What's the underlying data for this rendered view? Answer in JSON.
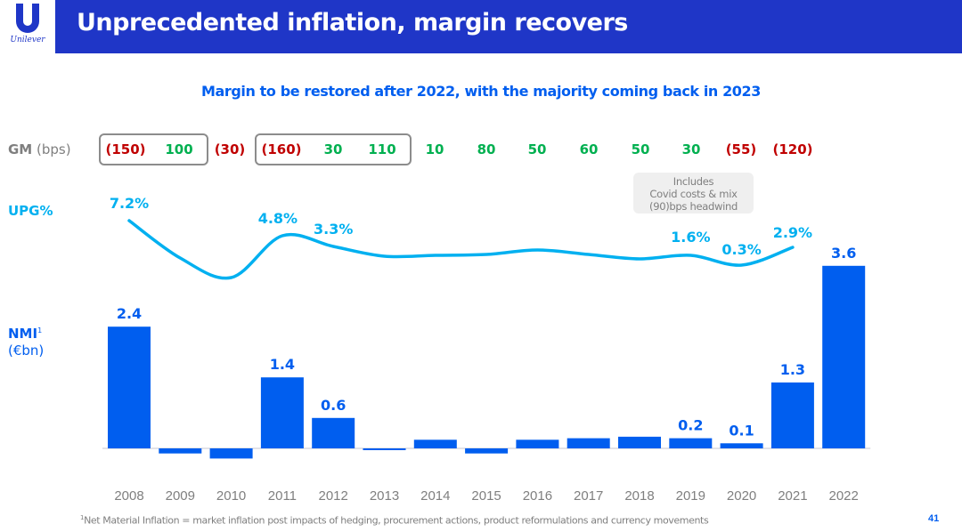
{
  "header": {
    "brand": "Unilever",
    "title": "Unprecedented inflation, margin recovers"
  },
  "subtitle": "Margin to be restored after 2022, with the majority coming back in 2023",
  "row_labels": {
    "gm_bold": "GM",
    "gm_light": " (bps)",
    "upg": "UPG%",
    "nmi_bold": "NMI",
    "nmi_sup": "1",
    "nmi_light": "(€bn)"
  },
  "callout": {
    "line1": "Includes",
    "line2": "Covid costs & mix",
    "line3": "(90)bps headwind"
  },
  "footnote": {
    "sup": "1",
    "text": "Net Material Inflation = market inflation post impacts of hedging, procurement actions, product reformulations and currency movements"
  },
  "page_number": "41",
  "colors": {
    "header_bg": "#1f36c7",
    "bar": "#005eef",
    "line": "#00b0f0",
    "positive": "#00b050",
    "negative": "#c00000",
    "neutral_text": "#7f7f7f"
  },
  "chart_data": {
    "type": "bar+line",
    "title": "Margin to be restored after 2022, with the majority coming back in 2023",
    "categories": [
      "2008",
      "2009",
      "2010",
      "2011",
      "2012",
      "2013",
      "2014",
      "2015",
      "2016",
      "2017",
      "2018",
      "2019",
      "2020",
      "2021",
      "2022"
    ],
    "series": [
      {
        "name": "NMI (€bn)",
        "type": "bar",
        "values": [
          2.4,
          -0.1,
          -0.2,
          1.4,
          0.6,
          -0.03,
          0.17,
          -0.1,
          0.17,
          0.2,
          0.23,
          0.2,
          0.1,
          1.3,
          3.6
        ],
        "labels": [
          "2.4",
          "",
          "",
          "1.4",
          "0.6",
          "",
          "",
          "",
          "",
          "",
          "",
          "0.2",
          "0.1",
          "1.3",
          "3.6"
        ]
      },
      {
        "name": "UPG%",
        "type": "line",
        "values": [
          7.2,
          4.5,
          2.9,
          4.8,
          3.3,
          3.2,
          3.2,
          3.3,
          3.4,
          3.3,
          3.1,
          1.6,
          0.3,
          2.9,
          null
        ],
        "labels": [
          "7.2%",
          "",
          "",
          "4.8%",
          "3.3%",
          "",
          "",
          "",
          "",
          "",
          "",
          "1.6%",
          "0.3%",
          "2.9%",
          ""
        ]
      },
      {
        "name": "GM (bps)",
        "type": "table",
        "values": [
          -150,
          100,
          -30,
          -160,
          30,
          110,
          10,
          80,
          50,
          60,
          50,
          30,
          -55,
          -120,
          null
        ],
        "labels": [
          "(150)",
          "100",
          "(30)",
          "(160)",
          "30",
          "110",
          "10",
          "80",
          "50",
          "60",
          "50",
          "30",
          "(55)",
          "(120)",
          ""
        ]
      }
    ],
    "gm_groups": [
      [
        0,
        1
      ],
      [
        3,
        5
      ]
    ],
    "xlabel": "",
    "ylabel": "NMI (€bn)",
    "grid": false,
    "legend": "none"
  }
}
